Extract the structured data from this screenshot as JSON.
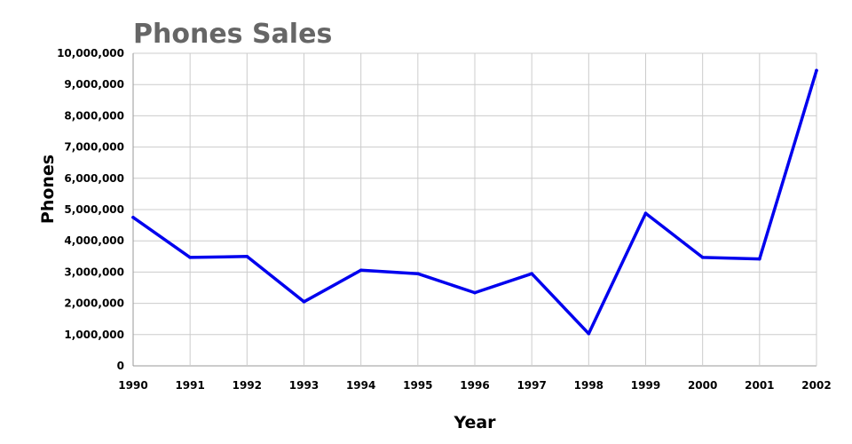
{
  "chart_data": {
    "type": "line",
    "title": "Phones Sales",
    "xlabel": "Year",
    "ylabel": "Phones",
    "categories": [
      "1990",
      "1991",
      "1992",
      "1993",
      "1994",
      "1995",
      "1996",
      "1997",
      "1998",
      "1999",
      "2000",
      "2001",
      "2002"
    ],
    "series": [
      {
        "values": [
          4750000,
          3470000,
          3500000,
          2050000,
          3060000,
          2950000,
          2340000,
          2950000,
          1030000,
          4880000,
          3470000,
          3420000,
          9450000
        ],
        "color": "#0000ee"
      }
    ],
    "ylim": [
      0,
      10000000
    ],
    "yticks": [
      0,
      1000000,
      2000000,
      3000000,
      4000000,
      5000000,
      6000000,
      7000000,
      8000000,
      9000000,
      10000000
    ],
    "ytick_labels": [
      "0",
      "1,000,000",
      "2,000,000",
      "3,000,000",
      "4,000,000",
      "5,000,000",
      "6,000,000",
      "7,000,000",
      "8,000,000",
      "9,000,000",
      "10,000,000"
    ],
    "grid": true,
    "legend": "none"
  }
}
